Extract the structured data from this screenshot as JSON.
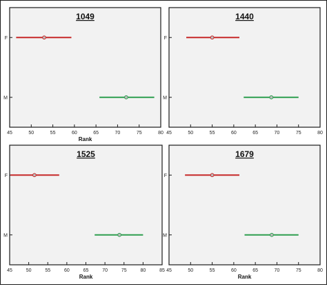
{
  "chart_data": [
    {
      "type": "interval",
      "title": "1049",
      "xlabel": "Rank",
      "xlim": [
        45,
        80
      ],
      "xticks": [
        45,
        50,
        55,
        60,
        65,
        70,
        75,
        80
      ],
      "categories": [
        "F",
        "M"
      ],
      "intervals": [
        {
          "category": "F",
          "center": 53.0,
          "low": 46.5,
          "high": 59.3,
          "color": "#c62828"
        },
        {
          "category": "M",
          "center": 72.0,
          "low": 65.8,
          "high": 78.5,
          "color": "#2e9e4f"
        }
      ]
    },
    {
      "type": "interval",
      "title": "1440",
      "xlabel": "",
      "xlim": [
        45,
        80
      ],
      "xticks": [
        45,
        50,
        55,
        60,
        65,
        70,
        75,
        80
      ],
      "categories": [
        "F",
        "M"
      ],
      "intervals": [
        {
          "category": "F",
          "center": 55.0,
          "low": 49.0,
          "high": 61.3,
          "color": "#c62828"
        },
        {
          "category": "M",
          "center": 68.7,
          "low": 62.3,
          "high": 75.0,
          "color": "#2e9e4f"
        }
      ]
    },
    {
      "type": "interval",
      "title": "1525",
      "xlabel": "Rank",
      "xlim": [
        45,
        85
      ],
      "xticks": [
        45,
        50,
        55,
        60,
        65,
        70,
        75,
        80,
        85
      ],
      "categories": [
        "F",
        "M"
      ],
      "intervals": [
        {
          "category": "F",
          "center": 51.5,
          "low": 45.2,
          "high": 58.0,
          "color": "#c62828"
        },
        {
          "category": "M",
          "center": 73.8,
          "low": 67.3,
          "high": 80.0,
          "color": "#2e9e4f"
        }
      ]
    },
    {
      "type": "interval",
      "title": "1679",
      "xlabel": "Rank",
      "xlim": [
        45,
        80
      ],
      "xticks": [
        45,
        50,
        55,
        60,
        65,
        70,
        75,
        80
      ],
      "categories": [
        "F",
        "M"
      ],
      "intervals": [
        {
          "category": "F",
          "center": 55.0,
          "low": 48.7,
          "high": 61.3,
          "color": "#c62828"
        },
        {
          "category": "M",
          "center": 68.8,
          "low": 62.5,
          "high": 75.0,
          "color": "#2e9e4f"
        }
      ]
    }
  ],
  "style": {
    "plot_background": "#f2f2f2",
    "axis_color": "#1a1a1a",
    "marker_fill": "#bdbdbd"
  }
}
